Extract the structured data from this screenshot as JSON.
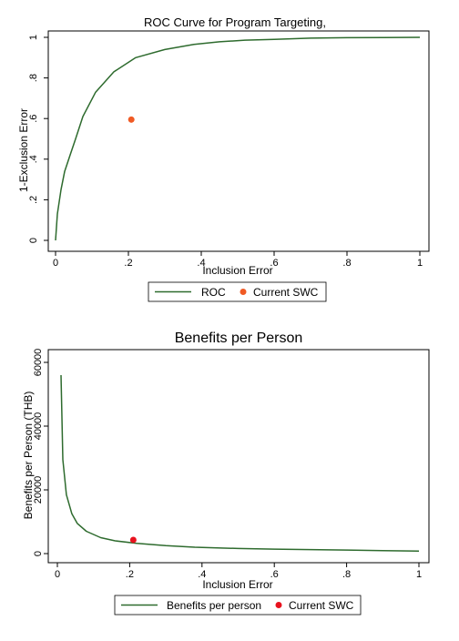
{
  "chart_data": [
    {
      "type": "line",
      "title": "ROC Curve for Program Targeting,",
      "xlabel": "Inclusion Error",
      "ylabel": "1-Exclusion Error",
      "xlim": [
        0,
        1
      ],
      "ylim": [
        0,
        1
      ],
      "xticks": [
        0,
        0.2,
        0.4,
        0.6,
        0.8,
        1
      ],
      "xtick_labels": [
        "0",
        ".2",
        ".4",
        ".6",
        ".8",
        "1"
      ],
      "yticks": [
        0,
        0.2,
        0.4,
        0.6,
        0.8,
        1
      ],
      "ytick_labels": [
        "0",
        ".2",
        ".4",
        ".6",
        ".8",
        "1"
      ],
      "grid": false,
      "legend_position": "bottom",
      "series": [
        {
          "name": "ROC",
          "kind": "line",
          "color": "#2e6b2e",
          "x": [
            0,
            0.005,
            0.015,
            0.025,
            0.04,
            0.055,
            0.075,
            0.11,
            0.16,
            0.22,
            0.3,
            0.38,
            0.45,
            0.52,
            0.6,
            0.7,
            0.8,
            0.9,
            1
          ],
          "y": [
            0,
            0.13,
            0.25,
            0.34,
            0.42,
            0.5,
            0.61,
            0.73,
            0.83,
            0.9,
            0.94,
            0.965,
            0.978,
            0.986,
            0.99,
            0.996,
            0.998,
            0.999,
            1
          ]
        },
        {
          "name": "Current SWC",
          "kind": "point",
          "color": "#f05a24",
          "x": [
            0.208
          ],
          "y": [
            0.595
          ]
        }
      ]
    },
    {
      "type": "line",
      "title": "Benefits per Person",
      "xlabel": "Inclusion Error",
      "ylabel": "Benefits per Person (THB)",
      "xlim": [
        0,
        1
      ],
      "ylim": [
        0,
        60000
      ],
      "xticks": [
        0,
        0.2,
        0.4,
        0.6,
        0.8,
        1
      ],
      "xtick_labels": [
        "0",
        ".2",
        ".4",
        ".6",
        ".8",
        "1"
      ],
      "yticks": [
        0,
        20000,
        40000,
        60000
      ],
      "ytick_labels": [
        "0",
        "20000",
        "40000",
        "60000"
      ],
      "grid": false,
      "legend_position": "bottom",
      "series": [
        {
          "name": "Benefits per person",
          "kind": "line",
          "color": "#2e6b2e",
          "x": [
            0.01,
            0.015,
            0.025,
            0.04,
            0.055,
            0.08,
            0.12,
            0.16,
            0.22,
            0.3,
            0.38,
            0.5,
            0.6,
            0.7,
            0.8,
            0.9,
            1
          ],
          "y": [
            56000,
            29500,
            18500,
            12500,
            9500,
            7000,
            5000,
            4000,
            3200,
            2500,
            2000,
            1600,
            1400,
            1250,
            1100,
            950,
            800
          ]
        },
        {
          "name": "Current SWC",
          "kind": "point",
          "color": "#e8121e",
          "x": [
            0.21
          ],
          "y": [
            4300
          ]
        }
      ]
    }
  ]
}
